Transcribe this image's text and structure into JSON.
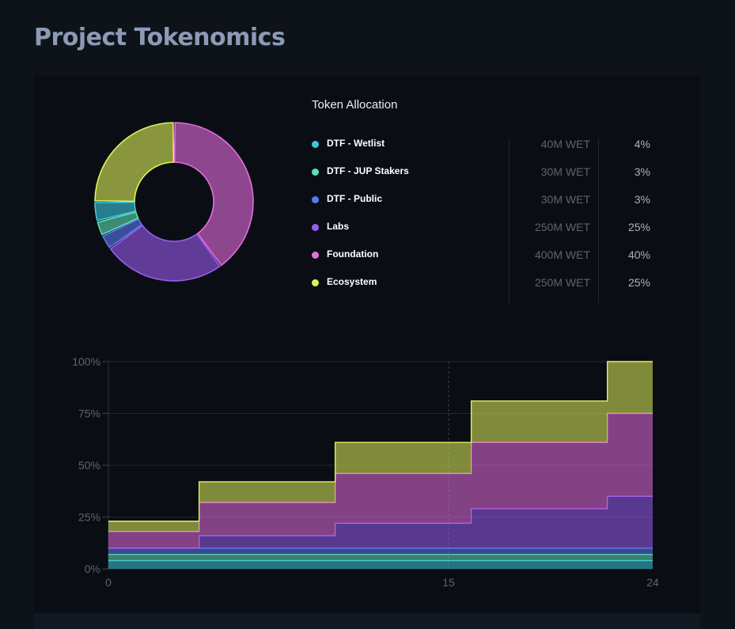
{
  "page": {
    "title": "Project Tokenomics"
  },
  "allocation": {
    "title": "Token Allocation",
    "items": [
      {
        "name": "DTF - Wetlist",
        "amount": "40M WET",
        "percent": "4%",
        "color": "#3cc8dc"
      },
      {
        "name": "DTF - JUP Stakers",
        "amount": "30M WET",
        "percent": "3%",
        "color": "#5fe0b4"
      },
      {
        "name": "DTF - Public",
        "amount": "30M WET",
        "percent": "3%",
        "color": "#5a7cf0"
      },
      {
        "name": "Labs",
        "amount": "250M WET",
        "percent": "25%",
        "color": "#9a5cf0"
      },
      {
        "name": "Foundation",
        "amount": "400M WET",
        "percent": "40%",
        "color": "#e66ee0"
      },
      {
        "name": "Ecosystem",
        "amount": "250M WET",
        "percent": "25%",
        "color": "#e0f25a"
      }
    ]
  },
  "chart_data": [
    {
      "type": "pie",
      "categories": [
        "Foundation",
        "Labs",
        "DTF - Public",
        "DTF - JUP Stakers",
        "DTF - Wetlist",
        "Ecosystem"
      ],
      "values": [
        40,
        25,
        3,
        3,
        4,
        25
      ],
      "colors": [
        "#e66ee0",
        "#9a5cf0",
        "#5a7cf0",
        "#5fe0b4",
        "#3cc8dc",
        "#e0f25a"
      ],
      "donut": true
    },
    {
      "type": "area",
      "stacked": true,
      "step": true,
      "x": [
        0,
        4,
        4,
        10,
        10,
        16,
        16,
        22,
        22,
        23.5,
        23.5,
        24
      ],
      "xticks": [
        "0",
        "15",
        "24"
      ],
      "xtick_values": [
        0,
        15,
        24
      ],
      "yticks": [
        "0%",
        "25%",
        "50%",
        "75%",
        "100%"
      ],
      "ytick_values": [
        0,
        25,
        50,
        75,
        100
      ],
      "xlim": [
        0,
        24
      ],
      "ylim": [
        0,
        100
      ],
      "grid": true,
      "series": [
        {
          "name": "DTF - Wetlist",
          "color": "#3cc8dc",
          "values": [
            4,
            4,
            4,
            4,
            4,
            4,
            4,
            4,
            4,
            4,
            4,
            4
          ]
        },
        {
          "name": "DTF - JUP Stakers",
          "color": "#5fe0b4",
          "values": [
            3,
            3,
            3,
            3,
            3,
            3,
            3,
            3,
            3,
            3,
            3,
            3
          ]
        },
        {
          "name": "DTF - Public",
          "color": "#5a7cf0",
          "values": [
            3,
            3,
            3,
            3,
            3,
            3,
            3,
            3,
            3,
            3,
            3,
            3
          ]
        },
        {
          "name": "Labs",
          "color": "#9a5cf0",
          "values": [
            0,
            0,
            6,
            6,
            12,
            12,
            19,
            19,
            25,
            25,
            25,
            25
          ]
        },
        {
          "name": "Foundation",
          "color": "#e66ee0",
          "values": [
            8,
            8,
            16,
            16,
            24,
            24,
            32,
            32,
            40,
            40,
            40,
            40
          ]
        },
        {
          "name": "Ecosystem",
          "color": "#e0f25a",
          "values": [
            5,
            5,
            10,
            10,
            15,
            15,
            20,
            20,
            25,
            25,
            25,
            25
          ]
        }
      ]
    }
  ]
}
